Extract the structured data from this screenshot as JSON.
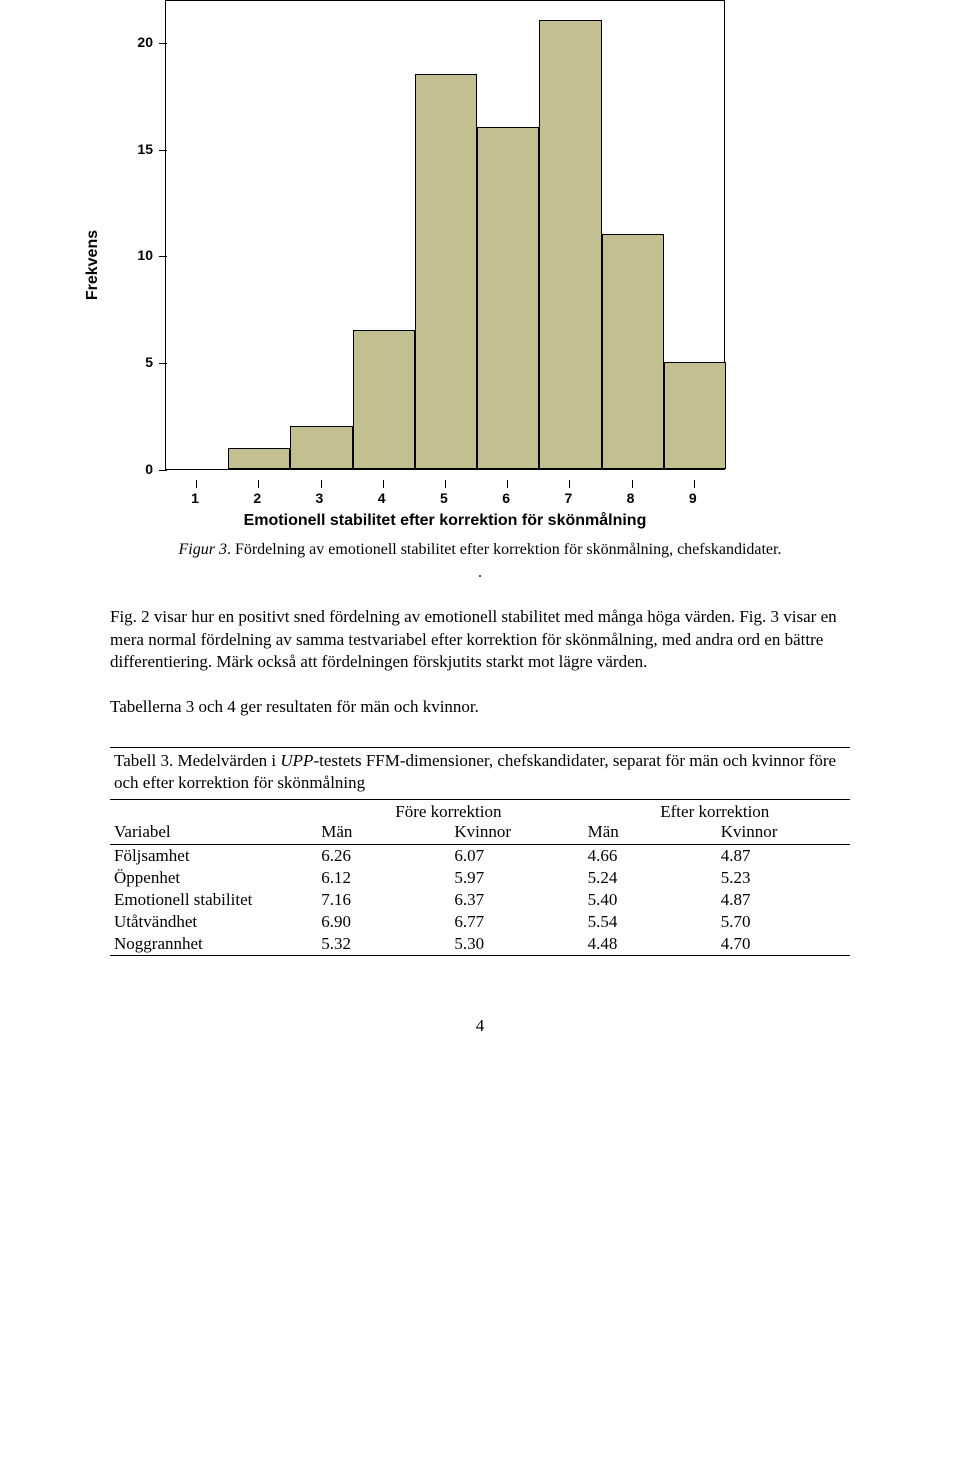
{
  "chart": {
    "type": "histogram",
    "y_label": "Frekvens",
    "x_label": "Emotionell stabilitet efter korrektion för skönmålning",
    "y_ticks": [
      0,
      5,
      10,
      15,
      20
    ],
    "ylim": [
      0,
      22
    ],
    "x_ticks": [
      1,
      2,
      3,
      4,
      5,
      6,
      7,
      8,
      9
    ],
    "xlim": [
      0.5,
      9.5
    ],
    "bar_width": 1.0,
    "bars": [
      {
        "x": 2.5,
        "value": 1.0
      },
      {
        "x": 3.5,
        "value": 2.0
      },
      {
        "x": 4.5,
        "value": 6.5
      },
      {
        "x": 5.5,
        "value": 18.5
      },
      {
        "x": 6.5,
        "value": 16.0
      },
      {
        "x": 7.5,
        "value": 21.0
      },
      {
        "x": 8.5,
        "value": 11.0
      },
      {
        "x": 9.5,
        "value": 5.0
      }
    ],
    "bar_fill": "#c4bf90",
    "bar_border": "#000000",
    "axis_color": "#000000",
    "background": "#ffffff",
    "tick_font_size": 14,
    "label_font_size": 16
  },
  "figure_caption": {
    "prefix": "Figur 3",
    "text": ". Fördelning av emotionell stabilitet efter korrektion för skönmålning, chefskandidater.",
    "trailing_period": "."
  },
  "paragraph1": "Fig. 2 visar hur en positivt sned fördelning av emotionell stabilitet med många höga värden. Fig. 3 visar en mera normal fördelning av samma testvariabel efter korrektion för skönmålning, med andra ord en bättre differentiering. Märk också att fördelningen förskjutits starkt mot lägre värden.",
  "paragraph2": "Tabellerna 3 och 4 ger resultaten för män och kvinnor.",
  "table": {
    "caption_prefix": "Tabell 3. Medelvärden i ",
    "caption_italic": "UPP",
    "caption_suffix": "-testets FFM-dimensioner, chefskandidater, separat för män och kvinnor före och efter korrektion för skönmålning",
    "group_headers": [
      "Före korrektion",
      "Efter korrektion"
    ],
    "col_headers": [
      "Variabel",
      "Män",
      "Kvinnor",
      "Män",
      "Kvinnor"
    ],
    "rows": [
      {
        "label": "Följsamhet",
        "v": [
          "6.26",
          "6.07",
          "4.66",
          "4.87"
        ]
      },
      {
        "label": "Öppenhet",
        "v": [
          "6.12",
          "5.97",
          "5.24",
          "5.23"
        ]
      },
      {
        "label": "Emotionell stabilitet",
        "v": [
          "7.16",
          "6.37",
          "5.40",
          "4.87"
        ]
      },
      {
        "label": "Utåtvändhet",
        "v": [
          "6.90",
          "6.77",
          "5.54",
          "5.70"
        ]
      },
      {
        "label": "Noggrannhet",
        "v": [
          "5.32",
          "5.30",
          "4.48",
          "4.70"
        ]
      }
    ]
  },
  "page_number": "4"
}
